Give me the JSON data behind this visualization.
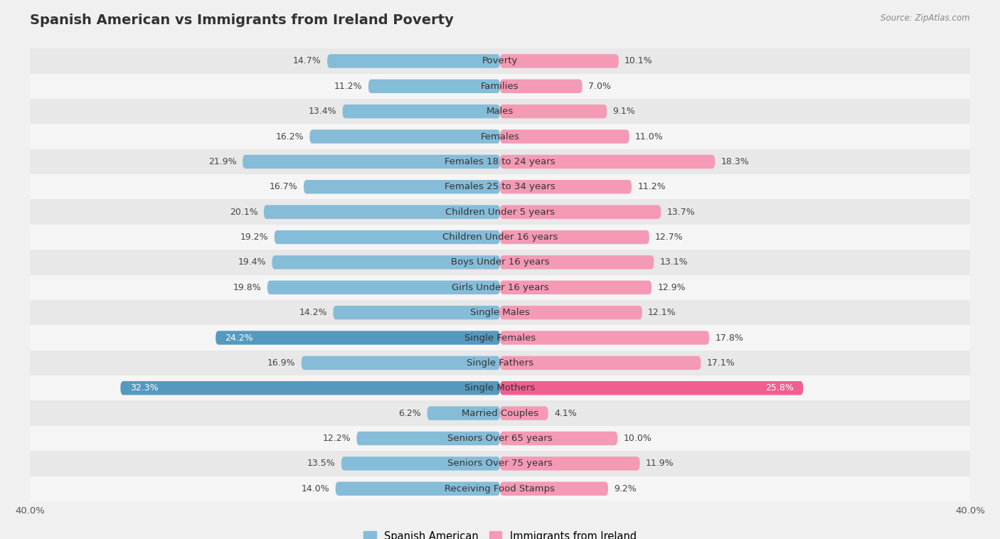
{
  "title": "Spanish American vs Immigrants from Ireland Poverty",
  "source": "Source: ZipAtlas.com",
  "categories": [
    "Poverty",
    "Families",
    "Males",
    "Females",
    "Females 18 to 24 years",
    "Females 25 to 34 years",
    "Children Under 5 years",
    "Children Under 16 years",
    "Boys Under 16 years",
    "Girls Under 16 years",
    "Single Males",
    "Single Females",
    "Single Fathers",
    "Single Mothers",
    "Married Couples",
    "Seniors Over 65 years",
    "Seniors Over 75 years",
    "Receiving Food Stamps"
  ],
  "spanish_american": [
    14.7,
    11.2,
    13.4,
    16.2,
    21.9,
    16.7,
    20.1,
    19.2,
    19.4,
    19.8,
    14.2,
    24.2,
    16.9,
    32.3,
    6.2,
    12.2,
    13.5,
    14.0
  ],
  "immigrants_ireland": [
    10.1,
    7.0,
    9.1,
    11.0,
    18.3,
    11.2,
    13.7,
    12.7,
    13.1,
    12.9,
    12.1,
    17.8,
    17.1,
    25.8,
    4.1,
    10.0,
    11.9,
    9.2
  ],
  "color_spanish": "#85bcd8",
  "color_ireland": "#f49ab5",
  "color_spanish_highlight": "#5599bf",
  "color_ireland_highlight": "#ef6090",
  "highlight_spanish": [
    11,
    13
  ],
  "highlight_ireland": [
    13
  ],
  "bar_height": 0.55,
  "xlim": 40.0,
  "bg_color": "#f0f0f0",
  "row_color_even": "#e8e8e8",
  "row_color_odd": "#f5f5f5",
  "label_fontsize": 9.5,
  "value_fontsize": 9,
  "title_fontsize": 14
}
